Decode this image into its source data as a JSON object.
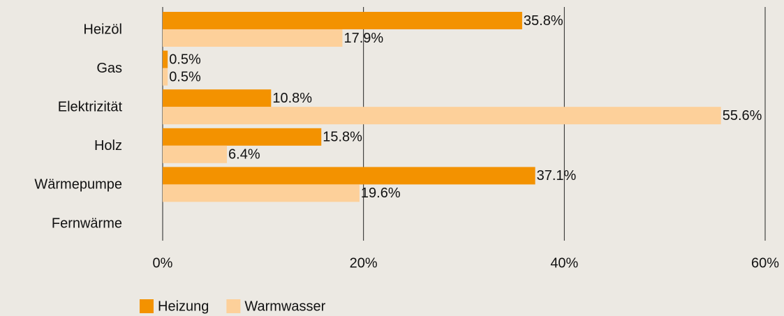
{
  "chart_data": {
    "type": "bar",
    "orientation": "horizontal",
    "categories": [
      "Heizöl",
      "Gas",
      "Elektrizität",
      "Holz",
      "Wärmepumpe",
      "Fernwärme"
    ],
    "series": [
      {
        "name": "Heizung",
        "color": "#f39200",
        "values": [
          35.8,
          0.5,
          10.8,
          15.8,
          37.1,
          null
        ],
        "value_labels": [
          "35.8%",
          "0.5%",
          "10.8%",
          "15.8%",
          "37.1%",
          null
        ]
      },
      {
        "name": "Warmwasser",
        "color": "#fdd09a",
        "values": [
          17.9,
          0.5,
          55.6,
          6.4,
          19.6,
          null
        ],
        "value_labels": [
          "17.9%",
          "0.5%",
          "55.6%",
          "6.4%",
          "19.6%",
          null
        ]
      }
    ],
    "xlim": [
      0,
      60
    ],
    "xticks": [
      {
        "value": 0,
        "label": "0%"
      },
      {
        "value": 20,
        "label": "20%"
      },
      {
        "value": 40,
        "label": "40%"
      },
      {
        "value": 60,
        "label": "60%"
      }
    ],
    "grid": true,
    "legend": "bottom"
  }
}
